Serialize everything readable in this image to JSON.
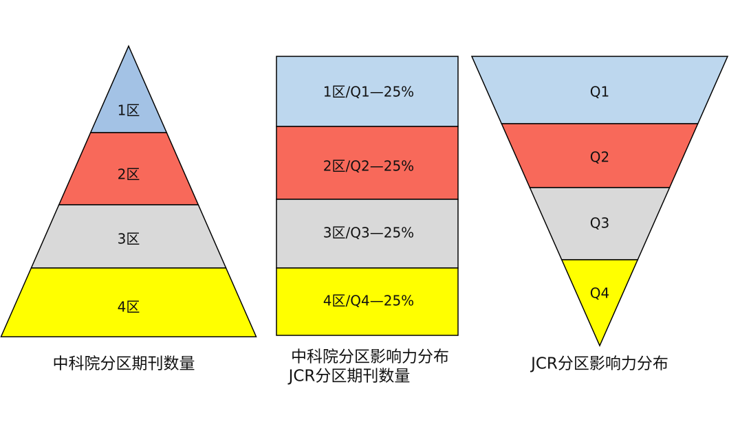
{
  "pyramid": {
    "layers": [
      "1区",
      "2区",
      "3区",
      "4区"
    ],
    "caption": "中科院分区期刊数量"
  },
  "middle": {
    "bands": [
      "1区/Q1—25%",
      "2区/Q2—25%",
      "3区/Q3—25%",
      "4区/Q4—25%"
    ],
    "caption": [
      "中科院分区影响力分布",
      "JCR分区期刊数量"
    ]
  },
  "funnel": {
    "layers": [
      "Q1",
      "Q2",
      "Q3",
      "Q4"
    ],
    "caption": "JCR分区影响力分布"
  }
}
